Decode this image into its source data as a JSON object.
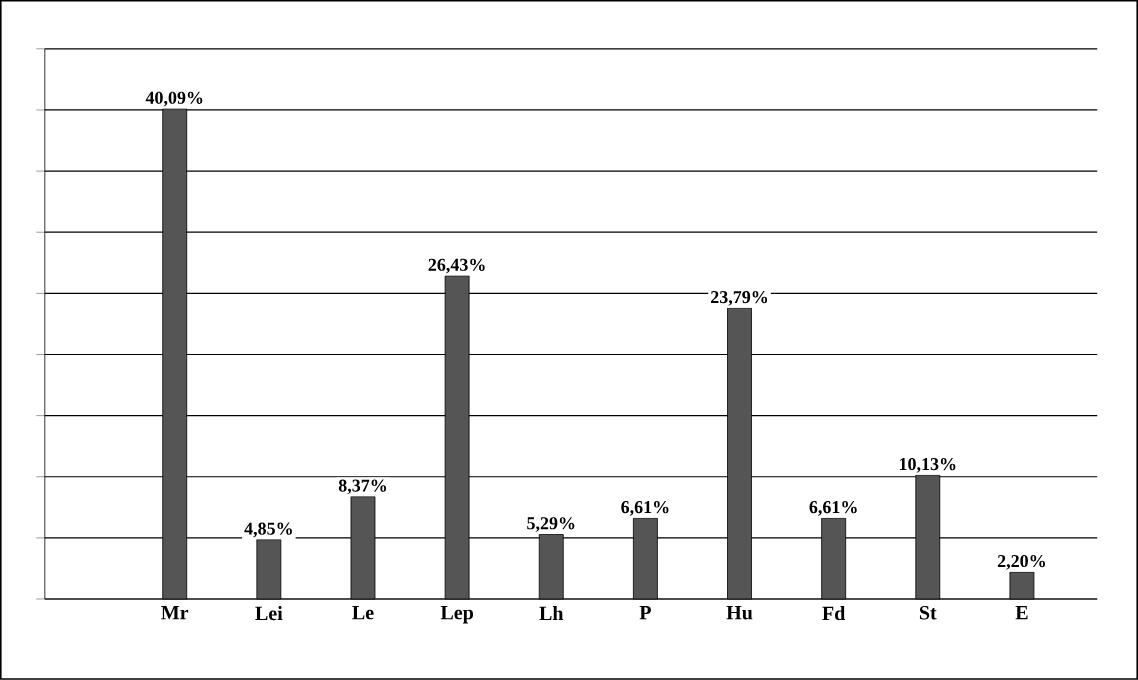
{
  "chart_data": {
    "type": "bar",
    "categories": [
      "Mr",
      "Lei",
      "Le",
      "Lep",
      "Lh",
      "P",
      "Hu",
      "Fd",
      "St",
      "E"
    ],
    "values": [
      40.09,
      4.85,
      8.37,
      26.43,
      5.29,
      6.61,
      23.79,
      6.61,
      10.13,
      2.2
    ],
    "value_labels": [
      "40,09%",
      "4,85%",
      "8,37%",
      "26,43%",
      "5,29%",
      "6,61%",
      "23,79%",
      "6,61%",
      "10,13%",
      "2,20%"
    ],
    "color": "#555555",
    "ylim": [
      0,
      45
    ],
    "yticks": [
      {
        "value": 0,
        "label": null
      },
      {
        "value": 5,
        "label": null
      },
      {
        "value": 10,
        "label": null
      },
      {
        "value": 15,
        "label": null
      },
      {
        "value": 20,
        "label": null
      },
      {
        "value": 25,
        "label": null
      },
      {
        "value": 30,
        "label": null
      },
      {
        "value": 35,
        "label": null
      },
      {
        "value": 40,
        "label": null
      },
      {
        "value": 45,
        "label": null
      }
    ],
    "grid": "y",
    "tick_labels": "x"
  }
}
